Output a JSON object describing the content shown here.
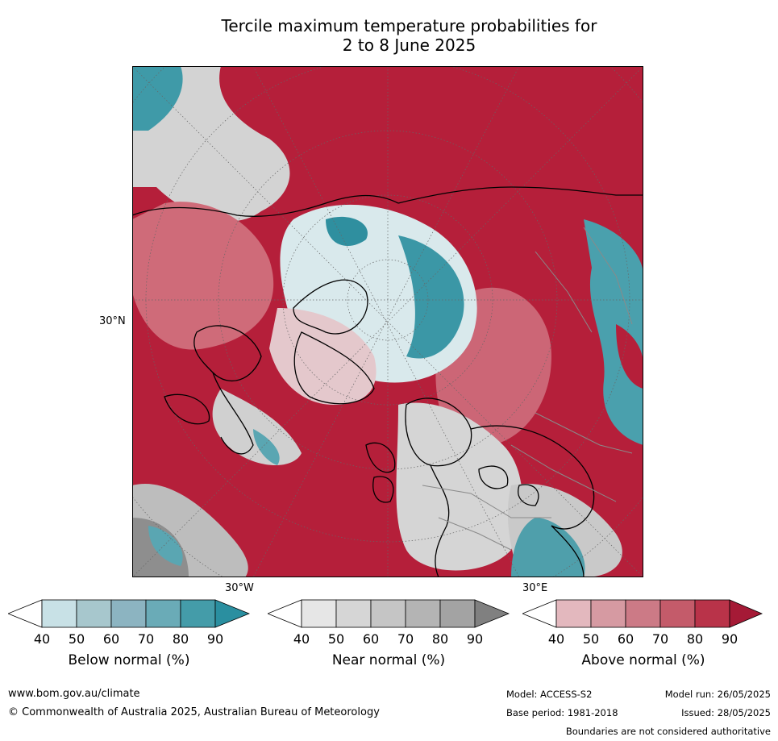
{
  "title": {
    "line1": "Tercile maximum temperature probabilities for",
    "line2": "2 to 8 June 2025"
  },
  "map": {
    "latitude_label": "30°N",
    "longitude_labels": [
      "30°W",
      "30°E"
    ],
    "colors": {
      "above_high": "#b51f3a",
      "below_high": "#2a8fa0",
      "near_grey": "#d3d3d3",
      "coast": "#000000",
      "borders": "#8a8a8a"
    }
  },
  "colorbars": [
    {
      "label": "Below normal (%)",
      "ticks": [
        "40",
        "50",
        "60",
        "70",
        "80",
        "90"
      ],
      "colors": [
        "#ffffff",
        "#c8e1e6",
        "#a7c7cd",
        "#8cb4c1",
        "#6aabb7",
        "#449ca9",
        "#2a8fa0"
      ]
    },
    {
      "label": "Near normal (%)",
      "ticks": [
        "40",
        "50",
        "60",
        "70",
        "80",
        "90"
      ],
      "colors": [
        "#ffffff",
        "#e6e6e6",
        "#d6d6d6",
        "#c5c5c5",
        "#b4b4b4",
        "#a3a3a3",
        "#808080"
      ]
    },
    {
      "label": "Above normal (%)",
      "ticks": [
        "40",
        "50",
        "60",
        "70",
        "80",
        "90"
      ],
      "colors": [
        "#ffffff",
        "#e3b8be",
        "#d69aa2",
        "#cc7a86",
        "#c45b6a",
        "#b93349",
        "#a51a36"
      ]
    }
  ],
  "footer": {
    "website": "www.bom.gov.au/climate",
    "copyright": "© Commonwealth of Australia 2025, Australian Bureau of Meteorology",
    "model": "Model: ACCESS-S2",
    "model_run": "Model run: 26/05/2025",
    "base_period": "Base period: 1981-2018",
    "issued": "Issued: 28/05/2025",
    "disclaimer": "Boundaries are not considered authoritative"
  }
}
